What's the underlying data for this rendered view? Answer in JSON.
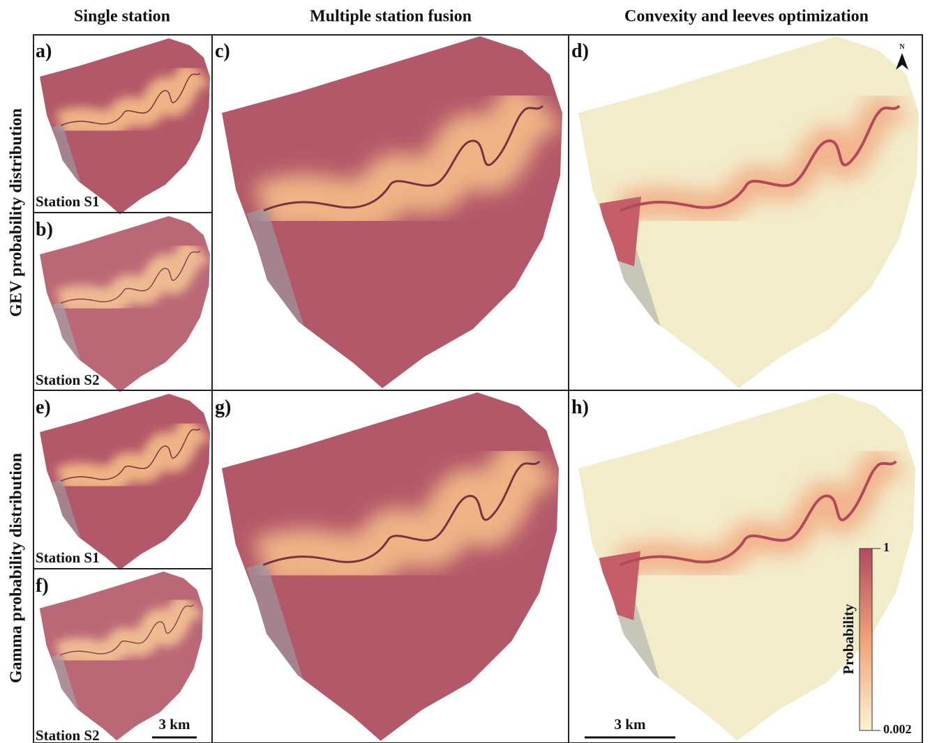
{
  "column_headers": [
    "Single station",
    "Multiple station fusion",
    "Convexity and leeves optimization"
  ],
  "row_labels": [
    "GEV probability distribution",
    "Gamma probability distribution"
  ],
  "panel_labels": [
    "a)",
    "b)",
    "c)",
    "d)",
    "e)",
    "f)",
    "g)",
    "h)"
  ],
  "station_labels": [
    "Station S1",
    "Station S2",
    "Station S1",
    "Station S2"
  ],
  "scale_bars": [
    "3 km",
    "3 km"
  ],
  "north_arrow": "N",
  "colorbar": {
    "title": "Probability",
    "max": 1,
    "min": 0.002
  }
}
